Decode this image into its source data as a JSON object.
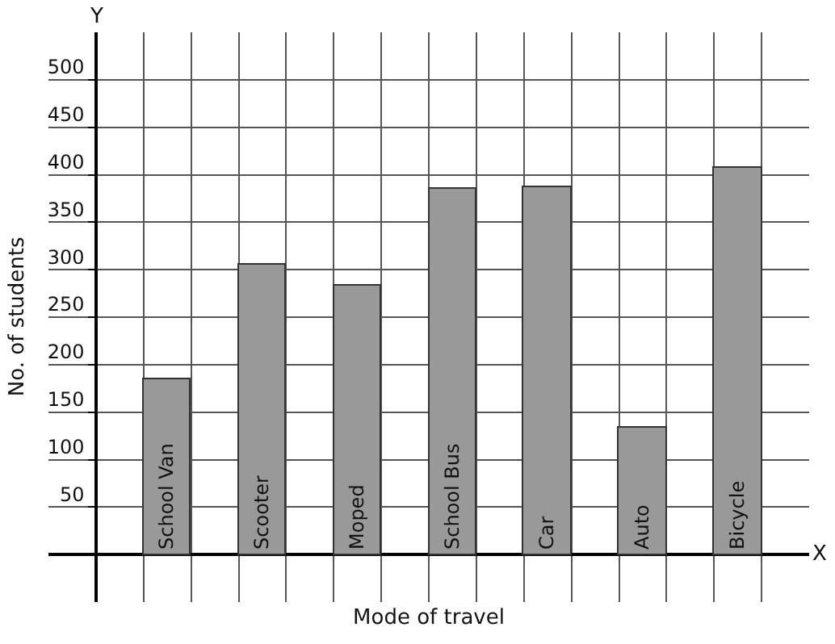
{
  "chart_data": {
    "type": "bar",
    "xlabel": "Mode of travel",
    "ylabel": "No. of students",
    "categories": [
      "School Van",
      "Scooter",
      "Moped",
      "School Bus",
      "Car",
      "Auto",
      "Bicycle"
    ],
    "values": [
      185,
      305,
      283,
      385,
      387,
      133,
      408
    ],
    "color": "#999999",
    "ylim": [
      -50,
      550
    ],
    "yticks": [
      50,
      100,
      150,
      200,
      250,
      300,
      350,
      400,
      450,
      500
    ],
    "grid": true,
    "tick_labels": "y",
    "annotations": [
      "X",
      "Y"
    ]
  }
}
